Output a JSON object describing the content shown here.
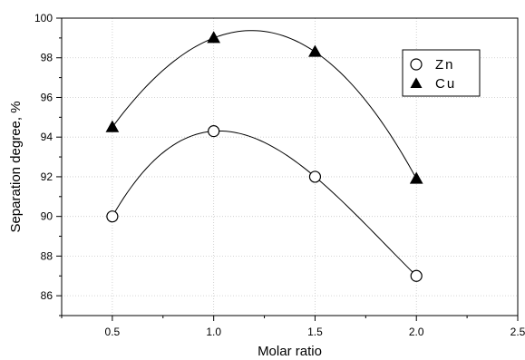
{
  "chart_data": {
    "type": "scatter",
    "xlabel": "Molar ratio",
    "ylabel": "Separation degree, %",
    "xlim": [
      0.25,
      2.5
    ],
    "ylim": [
      85,
      100
    ],
    "x_ticks": [
      0.5,
      1.0,
      1.5,
      2.0,
      2.5
    ],
    "x_tick_labels": [
      "0.5",
      "1.0",
      "1.5",
      "2.0",
      "2.5"
    ],
    "y_ticks": [
      86,
      88,
      90,
      92,
      94,
      96,
      98,
      100
    ],
    "y_tick_labels": [
      "86",
      "88",
      "90",
      "92",
      "94",
      "96",
      "98",
      "100"
    ],
    "grid": true,
    "legend_position": "top-right",
    "series": [
      {
        "name": "Zn",
        "marker": "open-circle",
        "fitted_curve": true,
        "points": [
          {
            "x": 0.5,
            "y": 90.0
          },
          {
            "x": 1.0,
            "y": 94.3
          },
          {
            "x": 1.5,
            "y": 92.0
          },
          {
            "x": 2.0,
            "y": 87.0
          }
        ]
      },
      {
        "name": "Cu",
        "marker": "filled-triangle",
        "fitted_curve": true,
        "points": [
          {
            "x": 0.5,
            "y": 94.5
          },
          {
            "x": 1.0,
            "y": 99.0
          },
          {
            "x": 1.5,
            "y": 98.3
          },
          {
            "x": 2.0,
            "y": 91.9
          }
        ]
      }
    ]
  }
}
